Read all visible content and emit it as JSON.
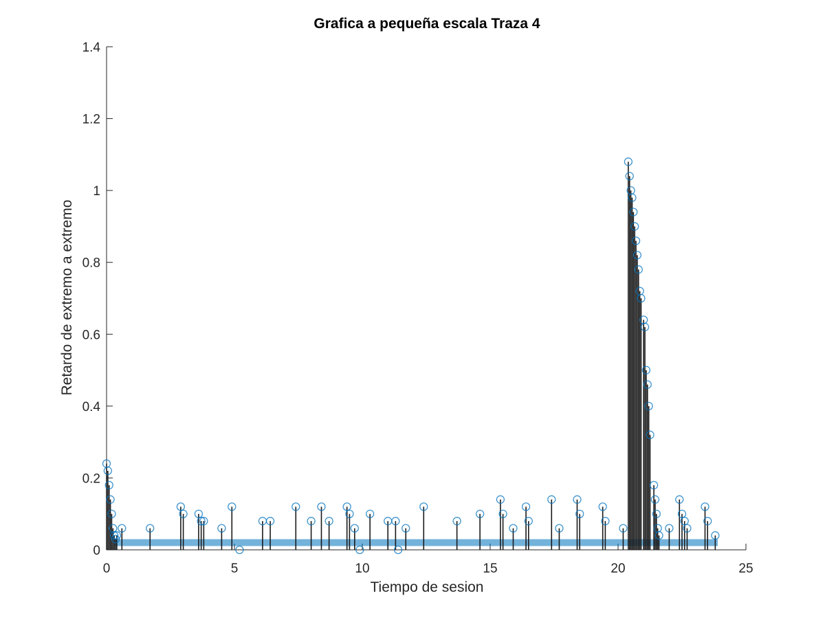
{
  "chart_data": {
    "type": "scatter",
    "subtype": "stem",
    "title": "Grafica a pequeña escala Traza 4",
    "xlabel": "Tiempo de sesion",
    "ylabel": "Retardo de extremo a extremo",
    "xlim": [
      0,
      25
    ],
    "ylim": [
      0,
      1.4
    ],
    "xticks": [
      0,
      5,
      10,
      15,
      20,
      25
    ],
    "yticks": [
      0,
      0.2,
      0.4,
      0.6,
      0.8,
      1,
      1.2,
      1.4
    ],
    "ytick_labels": [
      "0",
      "0.2",
      "0.4",
      "0.6",
      "0.8",
      "1",
      "1.2",
      "1.4"
    ],
    "grid": false,
    "marker": "circle",
    "marker_color": "#0072BD",
    "stem_color": "#1a1a1a",
    "baseline_value": 0.02,
    "series": [
      {
        "x": [
          0.0,
          0.05,
          0.1,
          0.15,
          0.2,
          0.25,
          0.3,
          0.35,
          0.4,
          0.6,
          1.7,
          2.9,
          3.0,
          3.6,
          3.7,
          3.8,
          4.5,
          4.9,
          5.2,
          6.1,
          6.4,
          7.4,
          8.0,
          8.4,
          8.7,
          9.4,
          9.5,
          9.7,
          9.9,
          10.3,
          11.0,
          11.3,
          11.4,
          11.7,
          12.4,
          13.7,
          14.6,
          15.4,
          15.5,
          15.9,
          16.4,
          16.5,
          17.4,
          17.7,
          18.4,
          18.5,
          19.4,
          19.5,
          20.2,
          20.4,
          20.45,
          20.5,
          20.55,
          20.6,
          20.65,
          20.7,
          20.75,
          20.8,
          20.85,
          20.9,
          21.0,
          21.05,
          21.1,
          21.15,
          21.2,
          21.25,
          21.4,
          21.45,
          21.5,
          21.55,
          21.6,
          22.0,
          22.4,
          22.5,
          22.6,
          22.7,
          23.4,
          23.5,
          23.8
        ],
        "y": [
          0.24,
          0.22,
          0.18,
          0.14,
          0.1,
          0.06,
          0.04,
          0.03,
          0.04,
          0.06,
          0.06,
          0.12,
          0.1,
          0.1,
          0.08,
          0.08,
          0.06,
          0.12,
          0.0,
          0.08,
          0.08,
          0.12,
          0.08,
          0.12,
          0.08,
          0.12,
          0.1,
          0.06,
          0.0,
          0.1,
          0.08,
          0.08,
          0.0,
          0.06,
          0.12,
          0.08,
          0.1,
          0.14,
          0.1,
          0.06,
          0.12,
          0.08,
          0.14,
          0.06,
          0.14,
          0.1,
          0.12,
          0.08,
          0.06,
          1.08,
          1.04,
          1.0,
          0.98,
          0.94,
          0.9,
          0.86,
          0.82,
          0.78,
          0.72,
          0.7,
          0.64,
          0.62,
          0.5,
          0.46,
          0.4,
          0.32,
          0.18,
          0.14,
          0.1,
          0.06,
          0.04,
          0.06,
          0.14,
          0.1,
          0.08,
          0.06,
          0.12,
          0.08,
          0.04
        ]
      }
    ]
  }
}
